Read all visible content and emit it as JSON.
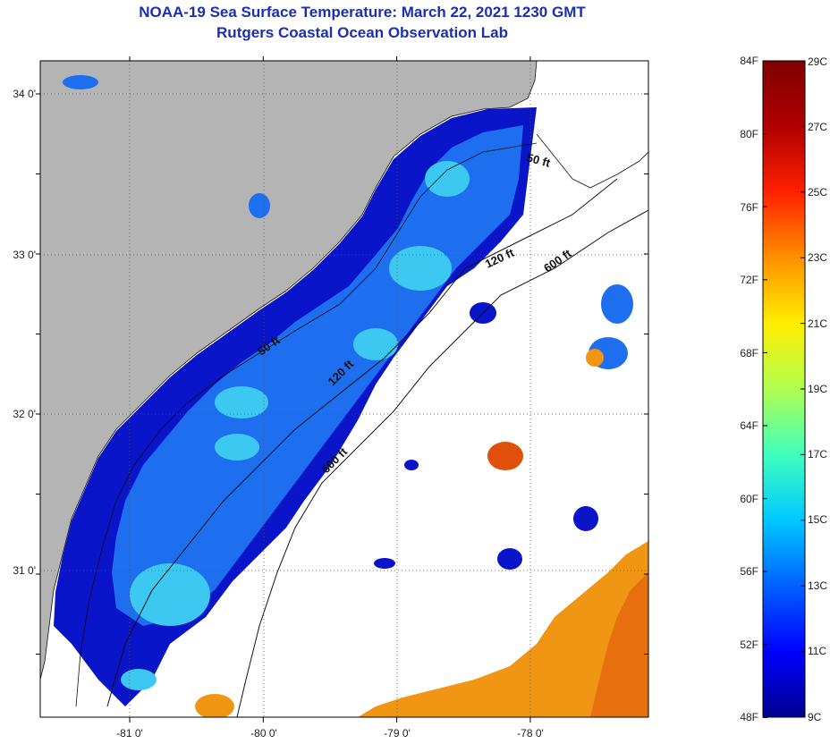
{
  "title": {
    "line1": "NOAA-19 Sea Surface Temperature:  March 22, 2021 1230 GMT",
    "line2": "Rutgers Coastal Ocean Observation Lab"
  },
  "map": {
    "lat_labels": [
      "34 0'",
      "33 0'",
      "32 0'",
      "31 0'"
    ],
    "lon_labels": [
      "-81 0'",
      "-80 0'",
      "-79 0'",
      "-78 0'"
    ],
    "contour_labels": [
      "50 ft",
      "120 ft",
      "600 ft",
      "50 ft",
      "120 ft",
      "600 ft"
    ],
    "colors": {
      "land": "#b4b4b4",
      "cloud": "#ffffff",
      "cold": "#0a14c8",
      "cool": "#1e6ef0",
      "mid": "#3cc8f0",
      "warm": "#f09614",
      "hot": "#e0500a"
    }
  },
  "colorbar": {
    "f_labels": [
      "84F",
      "80F",
      "76F",
      "72F",
      "68F",
      "64F",
      "60F",
      "56F",
      "52F",
      "48F"
    ],
    "c_labels": [
      "29C",
      "27C",
      "25C",
      "23C",
      "21C",
      "19C",
      "17C",
      "15C",
      "13C",
      "11C",
      "9C"
    ],
    "stops": [
      "#00008f",
      "#0000ff",
      "#0060ff",
      "#00c8ff",
      "#40ffbf",
      "#b0ff50",
      "#ffee00",
      "#ff9000",
      "#ff2000",
      "#b00000",
      "#800000"
    ]
  }
}
